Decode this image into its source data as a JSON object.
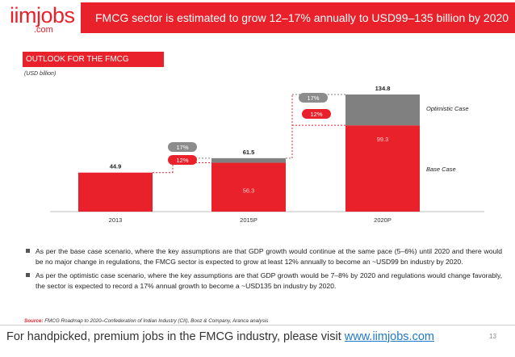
{
  "brand": {
    "name": "iimjobs",
    "suffix": ".com"
  },
  "slide": {
    "title": "FMCG sector is estimated to grow 12–17% annually to USD99–135 billion by 2020",
    "section": "OUTLOOK FOR THE FMCG SECTOR",
    "unit_label": "(USD billion)",
    "page_number": "13"
  },
  "colors": {
    "accent": "#e8212b",
    "bar_red": "#e8212b",
    "bar_grey": "#808080",
    "badge_grey": "#8c8c8c"
  },
  "chart_data": {
    "type": "bar",
    "title": "OUTLOOK FOR THE FMCG SECTOR",
    "ylabel": "(USD billion)",
    "xlabel": "",
    "categories": [
      "2013",
      "2015P",
      "2020P"
    ],
    "series": [
      {
        "name": "Base Case",
        "values": [
          44.9,
          56.3,
          99.3
        ]
      },
      {
        "name": "Optimistic Case",
        "values": [
          0,
          5.2,
          35.5
        ]
      }
    ],
    "total_labels": [
      "44.9",
      "61.5",
      "134.8"
    ],
    "base_labels": [
      "",
      "56.3",
      "99.3"
    ],
    "growth_badges": [
      {
        "between": [
          "2013",
          "2015P"
        ],
        "optimistic": "17%",
        "base": "12%"
      },
      {
        "between": [
          "2015P",
          "2020P"
        ],
        "optimistic": "17%",
        "base": "12%"
      }
    ],
    "legend": {
      "optimistic": "Optimistic Case",
      "base": "Base Case"
    },
    "ylim": [
      0,
      134.8
    ]
  },
  "bullets": [
    "As per the base case scenario, where the key assumptions are that GDP growth would continue at the same pace (5–6%) until 2020 and there would be no major change in regulations, the FMCG sector is expected to grow at least 12% annually to become an ~USD99 bn industry by 2020.",
    "As per the optimistic case scenario, where the key assumptions are that GDP growth would be 7–8% by 2020 and regulations would change favorably, the sector is expected to record a 17% annual growth to become a ~USD135 bn industry by 2020."
  ],
  "source": {
    "label": "Source:",
    "text": "FMCG Roadmap to 2020–Confederation of Indian Industry (CII), Booz & Company, Aranca analysis"
  },
  "footer": {
    "text": "For handpicked, premium jobs in the FMCG industry, please visit ",
    "link": "www.iimjobs.com"
  }
}
